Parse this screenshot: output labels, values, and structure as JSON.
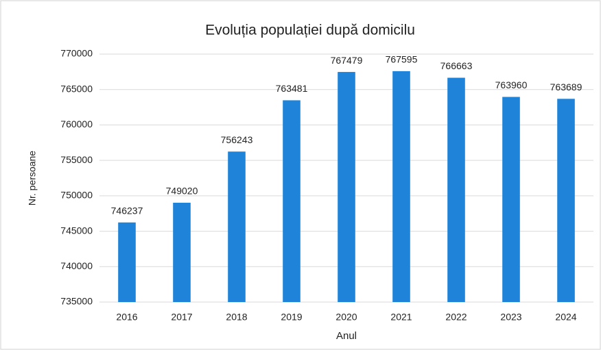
{
  "chart_data": {
    "type": "bar",
    "title": "Evoluția populației după domicilu",
    "x_label": "Anul",
    "y_label": "Nr. persoane",
    "categories": [
      "2016",
      "2017",
      "2018",
      "2019",
      "2020",
      "2021",
      "2022",
      "2023",
      "2024"
    ],
    "values": [
      746237,
      749020,
      756243,
      763481,
      767479,
      767595,
      766663,
      763960,
      763689
    ],
    "color": "#1f83d9",
    "ylim": [
      735000,
      770000
    ],
    "yticks": [
      735000,
      740000,
      745000,
      750000,
      755000,
      760000,
      765000,
      770000
    ],
    "grid": true
  }
}
